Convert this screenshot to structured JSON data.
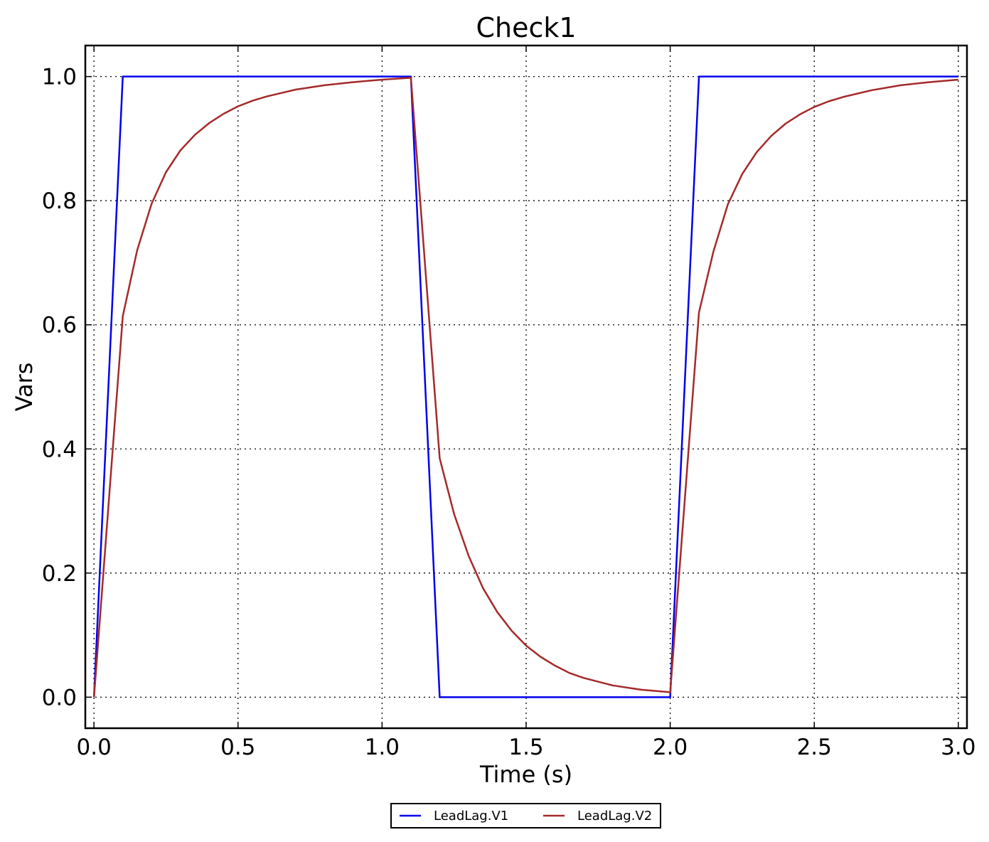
{
  "chart_data": {
    "type": "line",
    "title": "Check1",
    "xlabel": "Time (s)",
    "ylabel": "Vars",
    "xlim": [
      -0.03,
      3.03
    ],
    "ylim": [
      -0.05,
      1.05
    ],
    "xticks": [
      0.0,
      0.5,
      1.0,
      1.5,
      2.0,
      2.5,
      3.0
    ],
    "xtick_labels": [
      "0.0",
      "0.5",
      "1.0",
      "1.5",
      "2.0",
      "2.5",
      "3.0"
    ],
    "yticks": [
      0.0,
      0.2,
      0.4,
      0.6,
      0.8,
      1.0
    ],
    "ytick_labels": [
      "0.0",
      "0.2",
      "0.4",
      "0.6",
      "0.8",
      "1.0"
    ],
    "grid": true,
    "legend_position": "bottom-center (below plot)",
    "series": [
      {
        "name": "LeadLag.V1",
        "color": "#0000ee",
        "x": [
          0.0,
          0.1,
          1.1,
          1.2,
          2.0,
          2.1,
          3.0
        ],
        "y": [
          0.0,
          1.0,
          1.0,
          0.0,
          0.0,
          1.0,
          1.0
        ]
      },
      {
        "name": "LeadLag.V2",
        "color": "#a52a2a",
        "x": [
          0.0,
          0.1,
          0.15,
          0.2,
          0.25,
          0.3,
          0.35,
          0.4,
          0.45,
          0.5,
          0.55,
          0.6,
          0.7,
          0.8,
          0.9,
          1.0,
          1.1,
          1.2,
          1.25,
          1.3,
          1.35,
          1.4,
          1.45,
          1.5,
          1.55,
          1.6,
          1.65,
          1.7,
          1.8,
          1.9,
          2.0,
          2.1,
          2.15,
          2.2,
          2.25,
          2.3,
          2.35,
          2.4,
          2.45,
          2.5,
          2.55,
          2.6,
          2.7,
          2.8,
          2.9,
          3.0
        ],
        "y": [
          0.0,
          0.614,
          0.72,
          0.795,
          0.846,
          0.881,
          0.906,
          0.925,
          0.94,
          0.952,
          0.961,
          0.968,
          0.979,
          0.986,
          0.991,
          0.995,
          0.998,
          0.385,
          0.295,
          0.228,
          0.176,
          0.137,
          0.107,
          0.083,
          0.065,
          0.051,
          0.039,
          0.031,
          0.019,
          0.012,
          0.008,
          0.62,
          0.718,
          0.794,
          0.843,
          0.878,
          0.904,
          0.924,
          0.939,
          0.951,
          0.96,
          0.967,
          0.978,
          0.986,
          0.991,
          0.995
        ]
      }
    ]
  }
}
